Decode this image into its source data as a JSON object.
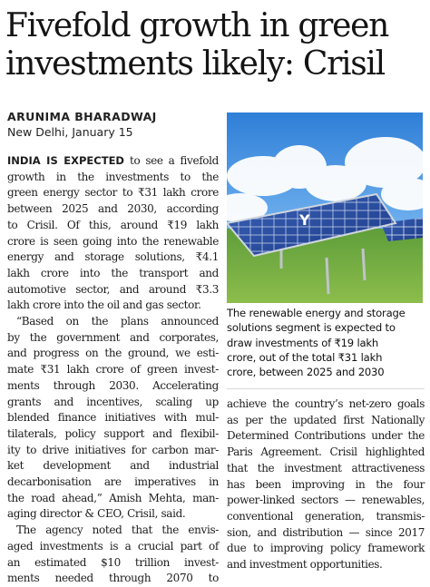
{
  "headline": {
    "lines": [
      "Fivefold growth in green",
      "investments likely: Crisil"
    ]
  },
  "byline": {
    "author": "ARUNIMA BHARADWAJ",
    "dateline": "New Delhi, January 15"
  },
  "photo": {
    "subject": "solar-panel-array-icon",
    "watermark": "Y"
  },
  "caption": {
    "lines": [
      "The renewable energy and storage",
      "solutions segment is expected to",
      "draw investments of ₹19 lakh",
      "crore, out of the total ₹31 lakh",
      "crore, between 2025 and 2030"
    ]
  },
  "article": {
    "lead": "INDIA IS EXPECTED",
    "left_column": [
      " to see a fivefold",
      "growth in the investments to the",
      "green energy sector to ₹31 lakh crore",
      "between 2025 and 2030, according",
      "to Crisil. Of this, around ₹19 lakh",
      "crore is seen going into the renewable",
      "energy and storage solutions, ₹4.1",
      "lakh crore into the transport and",
      "automotive sector, and around ₹3.3",
      "lakh crore into the oil and gas sector.",
      "“Based on the plans announced",
      "by the government and corporates,",
      "and progress on the ground, we esti-",
      "mate ₹31 lakh crore of green invest-",
      "ments through 2030. Accelerating",
      "grants and incentives, scaling up",
      "blended finance initiatives with mul-",
      "tilaterals, policy support and flexibil-",
      "ity to drive initiatives for carbon mar-",
      "ket development and industrial",
      "decarbonisation are imperatives in",
      "the road ahead,” Amish Mehta, man-",
      "aging director & CEO, Crisil, said.",
      "The agency noted that the envis-",
      "aged investments is a crucial part of",
      "an estimated $10 trillion invest-",
      "ments needed through 2070 to"
    ],
    "right_column": [
      "achieve the country’s net-zero goals",
      "as per the updated first Nationally",
      "Determined Contributions under the",
      "Paris Agreement. Crisil highlighted",
      "that the investment attractiveness",
      "has been improving in the four",
      "power-linked sectors — renewables,",
      "conventional generation, transmis-",
      "sion, and distribution — since 2017",
      "due to improving policy framework",
      "and investment opportunities."
    ]
  }
}
